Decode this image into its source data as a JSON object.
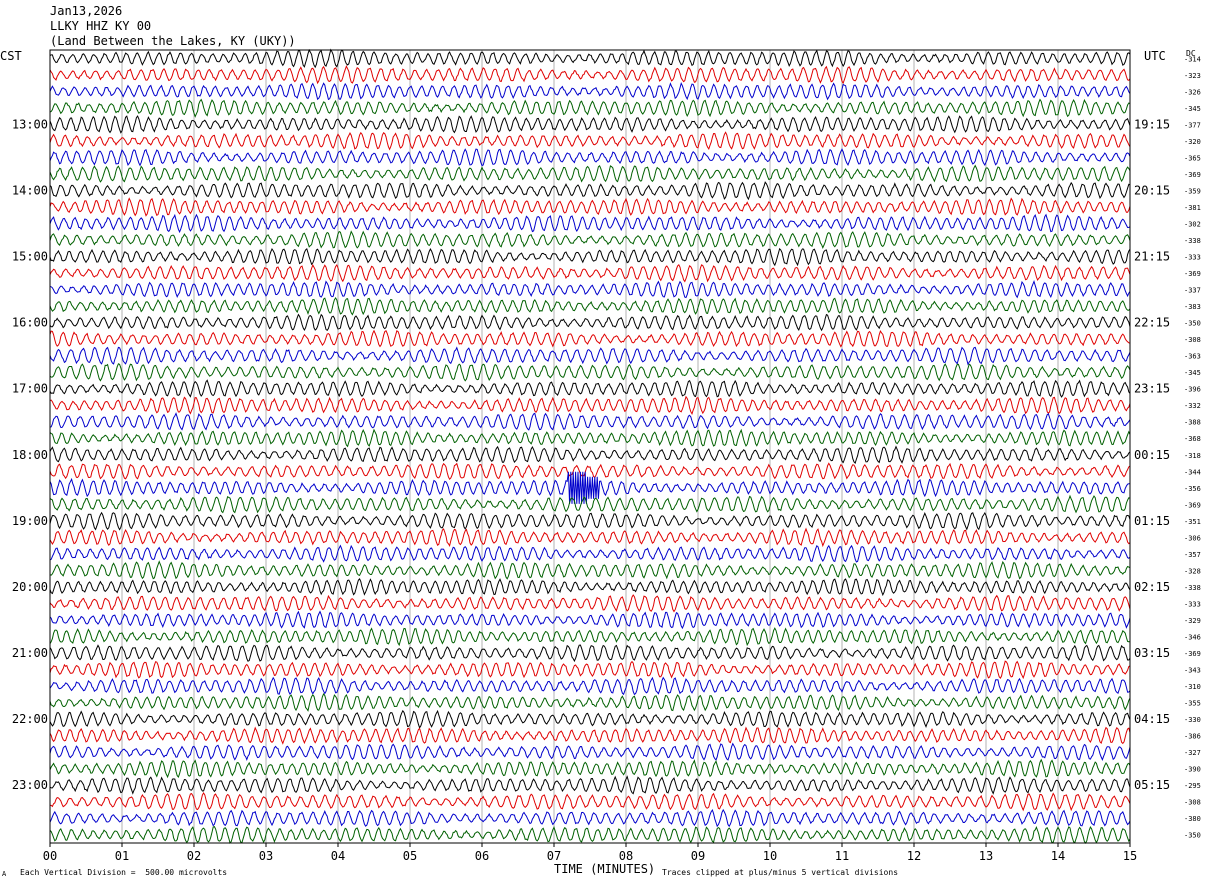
{
  "header": {
    "date": "Jan13,2026",
    "station": "LLKY HHZ KY 00",
    "location": "(Land Between the Lakes, KY (UKY))"
  },
  "left_tz": "CST",
  "right_tz": "UTC",
  "dc_label": "DC",
  "footer": {
    "scale_note": "Each Vertical Division =  500.00 microvolts",
    "clip_note": "Traces clipped at plus/minus 5 vertical divisions",
    "corner_mark": "A"
  },
  "colors": {
    "trace_cycle": [
      "#000000",
      "#e00000",
      "#0000cc",
      "#006000"
    ],
    "grid": "#808080"
  },
  "chart_data": {
    "type": "line",
    "title": "LLKY HHZ KY 00",
    "xlabel": "TIME (MINUTES)",
    "ylabel": "",
    "xlim": [
      0,
      15
    ],
    "x_ticks": [
      "00",
      "01",
      "02",
      "03",
      "04",
      "05",
      "06",
      "07",
      "08",
      "09",
      "10",
      "11",
      "12",
      "13",
      "14",
      "15"
    ],
    "rows_per_hour": 4,
    "left_hour_labels": [
      "13:00",
      "14:00",
      "15:00",
      "16:00",
      "17:00",
      "18:00",
      "19:00",
      "20:00",
      "21:00",
      "22:00",
      "23:00"
    ],
    "right_hour_labels": [
      "19:15",
      "20:15",
      "21:15",
      "22:15",
      "23:15",
      "00:15",
      "01:15",
      "02:15",
      "03:15",
      "04:15",
      "05:15"
    ],
    "dc_offsets": [
      "-314",
      "-323",
      "-326",
      "-345",
      "-377",
      "-320",
      "-365",
      "-369",
      "-359",
      "-381",
      "-302",
      "-338",
      "-333",
      "-369",
      "-337",
      "-383",
      "-350",
      "-308",
      "-363",
      "-345",
      "-396",
      "-332",
      "-388",
      "-368",
      "-318",
      "-344",
      "-356",
      "-369",
      "-351",
      "-306",
      "-357",
      "-328",
      "-338",
      "-333",
      "-329",
      "-346",
      "-369",
      "-343",
      "-310",
      "-355",
      "-330",
      "-386",
      "-327",
      "-390",
      "-295",
      "-308",
      "-380",
      "-350"
    ],
    "events": [
      {
        "row": 26,
        "minute": 7.28,
        "amplitude": "clipped"
      },
      {
        "row": 26,
        "minute": 7.38,
        "amplitude": "clipped"
      },
      {
        "row": 26,
        "minute": 7.55,
        "amplitude": "large"
      }
    ]
  }
}
